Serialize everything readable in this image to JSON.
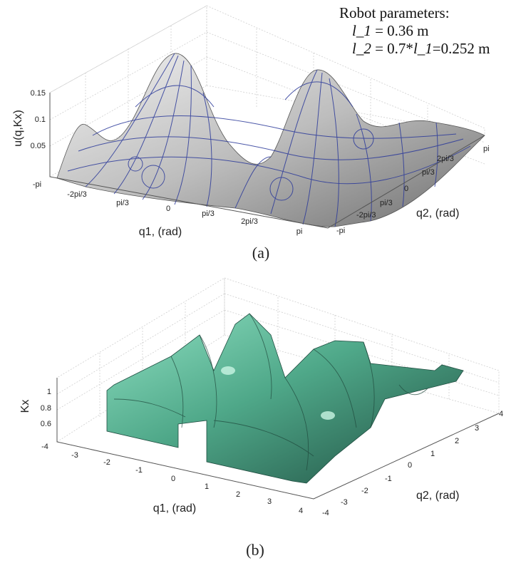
{
  "chart_data": [
    {
      "type": "surface",
      "caption": "(a)",
      "zlabel": "u(q,Kx)",
      "xlabel": "q1, (rad)",
      "ylabel": "q2, (rad)",
      "x_ticks": [
        "-pi",
        "-2pi/3",
        "pi/3",
        "0",
        "pi/3",
        "2pi/3",
        "pi"
      ],
      "y_ticks": [
        "-pi",
        "-2pi/3",
        "pi/3",
        "0",
        "pi/3",
        "2pi/3",
        "pi"
      ],
      "z_ticks": [
        "0.05",
        "0.1",
        "0.15"
      ],
      "xlim": [
        -3.1416,
        3.1416
      ],
      "ylim": [
        -3.1416,
        3.1416
      ],
      "zlim": [
        0,
        0.15
      ],
      "grid": true,
      "surface_color": "#c8c8c8",
      "contour_color": "#2c3a9a",
      "annotation": {
        "title": "Robot parameters:",
        "line1_var": "l_1",
        "line1_rest": " = 0.36 m",
        "line2_var": "l_2",
        "line2_mid": " = 0.7*",
        "line2_var2": "l_1",
        "line2_rest": "=0.252 m"
      }
    },
    {
      "type": "surface",
      "caption": "(b)",
      "zlabel": "Kx",
      "xlabel": "q1, (rad)",
      "ylabel": "q2, (rad)",
      "x_ticks": [
        "-4",
        "-3",
        "-2",
        "-1",
        "0",
        "1",
        "2",
        "3",
        "4"
      ],
      "y_ticks": [
        "-4",
        "-3",
        "-2",
        "-1",
        "0",
        "1",
        "2",
        "3",
        "4"
      ],
      "z_ticks": [
        "0.6",
        "0.8",
        "1"
      ],
      "xlim": [
        -4,
        4
      ],
      "ylim": [
        -4,
        4
      ],
      "zlim": [
        0.5,
        1
      ],
      "grid": true,
      "surface_color": "#5fbf9c"
    }
  ]
}
